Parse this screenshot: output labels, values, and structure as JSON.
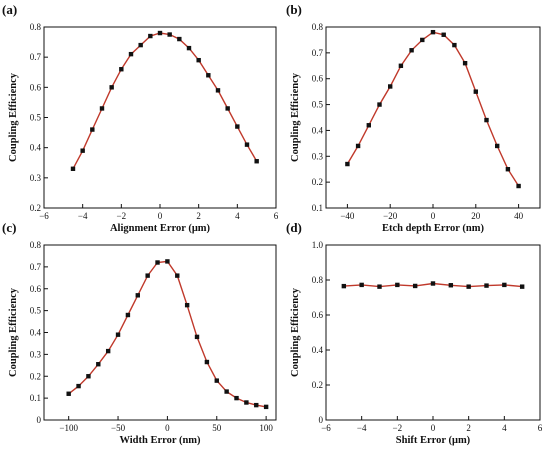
{
  "chart_data": [
    {
      "type": "line",
      "panel_label": "(a)",
      "xlabel": "Alignment Error (μm)",
      "ylabel": "Coupling Efficiency",
      "xlim": [
        -6,
        6
      ],
      "ylim": [
        0.2,
        0.8
      ],
      "xticks": [
        -6,
        -4,
        -2,
        0,
        2,
        4,
        6
      ],
      "yticks": [
        0.2,
        0.3,
        0.4,
        0.5,
        0.6,
        0.7,
        0.8
      ],
      "xtick_labels": [
        "−6",
        "−4",
        "−2",
        "0",
        "2",
        "4",
        "6"
      ],
      "ytick_labels": [
        "0.2",
        "0.3",
        "0.4",
        "0.5",
        "0.6",
        "0.7",
        "0.8"
      ],
      "series": [
        {
          "x": [
            -4.5,
            -4,
            -3.5,
            -3,
            -2.5,
            -2,
            -1.5,
            -1,
            -0.5,
            0,
            0.5,
            1,
            1.5,
            2,
            2.5,
            3,
            3.5,
            4,
            4.5,
            5
          ],
          "values": [
            0.33,
            0.39,
            0.46,
            0.53,
            0.6,
            0.66,
            0.71,
            0.74,
            0.77,
            0.78,
            0.775,
            0.76,
            0.73,
            0.69,
            0.64,
            0.59,
            0.53,
            0.47,
            0.41,
            0.355
          ]
        }
      ]
    },
    {
      "type": "line",
      "panel_label": "(b)",
      "xlabel": "Etch depth Error (nm)",
      "ylabel": "Coupling Efficiency",
      "xlim": [
        -50,
        50
      ],
      "ylim": [
        0.1,
        0.8
      ],
      "xticks": [
        -40,
        -20,
        0,
        20,
        40
      ],
      "yticks": [
        0.1,
        0.2,
        0.3,
        0.4,
        0.5,
        0.6,
        0.7,
        0.8
      ],
      "xtick_labels": [
        "−40",
        "−20",
        "0",
        "20",
        "40"
      ],
      "ytick_labels": [
        "0.1",
        "0.2",
        "0.3",
        "0.4",
        "0.5",
        "0.6",
        "0.7",
        "0.8"
      ],
      "series": [
        {
          "x": [
            -40,
            -35,
            -30,
            -25,
            -20,
            -15,
            -10,
            -5,
            0,
            5,
            10,
            15,
            20,
            25,
            30,
            35,
            40
          ],
          "values": [
            0.27,
            0.34,
            0.42,
            0.5,
            0.57,
            0.65,
            0.71,
            0.75,
            0.78,
            0.77,
            0.73,
            0.66,
            0.55,
            0.44,
            0.34,
            0.25,
            0.185
          ]
        }
      ]
    },
    {
      "type": "line",
      "panel_label": "(c)",
      "xlabel": "Width Error (nm)",
      "ylabel": "Coupling Efficiency",
      "xlim": [
        -125,
        110
      ],
      "ylim": [
        0,
        0.8
      ],
      "xticks": [
        -100,
        -50,
        0,
        50,
        100
      ],
      "yticks": [
        0,
        0.1,
        0.2,
        0.3,
        0.4,
        0.5,
        0.6,
        0.7,
        0.8
      ],
      "xtick_labels": [
        "−100",
        "−50",
        "0",
        "50",
        "100"
      ],
      "ytick_labels": [
        "0",
        "0.1",
        "0.2",
        "0.3",
        "0.4",
        "0.5",
        "0.6",
        "0.7",
        "0.8"
      ],
      "series": [
        {
          "x": [
            -100,
            -90,
            -80,
            -70,
            -60,
            -50,
            -40,
            -30,
            -20,
            -10,
            0,
            10,
            20,
            30,
            40,
            50,
            60,
            70,
            80,
            90,
            100
          ],
          "values": [
            0.12,
            0.155,
            0.2,
            0.255,
            0.315,
            0.39,
            0.48,
            0.57,
            0.66,
            0.72,
            0.725,
            0.66,
            0.525,
            0.38,
            0.265,
            0.18,
            0.13,
            0.1,
            0.08,
            0.068,
            0.06
          ]
        }
      ]
    },
    {
      "type": "line",
      "panel_label": "(d)",
      "xlabel": "Shift Error (μm)",
      "ylabel": "Coupling Efficiency",
      "xlim": [
        -6,
        6
      ],
      "ylim": [
        0,
        1.0
      ],
      "xticks": [
        -6,
        -4,
        -2,
        0,
        2,
        4,
        6
      ],
      "yticks": [
        0,
        0.2,
        0.4,
        0.6,
        0.8,
        1.0
      ],
      "xtick_labels": [
        "−6",
        "−4",
        "−2",
        "0",
        "2",
        "4",
        "6"
      ],
      "ytick_labels": [
        "0",
        "0.2",
        "0.4",
        "0.6",
        "0.8",
        "1.0"
      ],
      "series": [
        {
          "x": [
            -5,
            -4,
            -3,
            -2,
            -1,
            0,
            1,
            2,
            3,
            4,
            5
          ],
          "values": [
            0.765,
            0.772,
            0.762,
            0.772,
            0.766,
            0.78,
            0.77,
            0.762,
            0.768,
            0.772,
            0.762
          ]
        }
      ]
    }
  ],
  "style": {
    "line_color": "#c0392b",
    "marker_color": "#111111",
    "axis_color": "#111111"
  }
}
